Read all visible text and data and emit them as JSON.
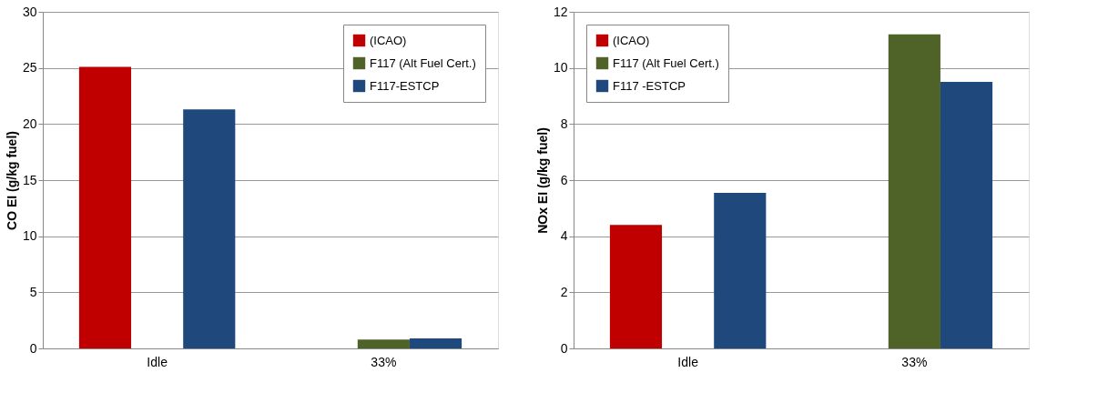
{
  "chart_data": [
    {
      "type": "bar",
      "categories": [
        "Idle",
        "33%"
      ],
      "ylabel": "CO EI (g/kg fuel)",
      "ylim": [
        0,
        30
      ],
      "yticks": [
        0,
        5,
        10,
        15,
        20,
        25,
        30
      ],
      "grid": "y",
      "legend": "top right",
      "series": [
        {
          "name": "(ICAO)",
          "color": "#c00000",
          "values": [
            25.1,
            null
          ]
        },
        {
          "name": "F117 (Alt Fuel Cert.)",
          "color": "#4f6228",
          "values": [
            null,
            0.8
          ]
        },
        {
          "name": "F117-ESTCP",
          "color": "#1f497d",
          "values": [
            21.3,
            0.9
          ]
        }
      ]
    },
    {
      "type": "bar",
      "categories": [
        "Idle",
        "33%"
      ],
      "ylabel": "NOx EI (g/kg fuel)",
      "ylim": [
        0,
        12
      ],
      "yticks": [
        0,
        2,
        4,
        6,
        8,
        10,
        12
      ],
      "grid": "y",
      "legend": "top left",
      "series": [
        {
          "name": "(ICAO)",
          "color": "#c00000",
          "values": [
            4.4,
            null
          ]
        },
        {
          "name": "F117 (Alt Fuel Cert.)",
          "color": "#4f6228",
          "values": [
            null,
            11.2
          ]
        },
        {
          "name": "F117 -ESTCP",
          "color": "#1f497d",
          "values": [
            5.55,
            9.5
          ]
        }
      ]
    }
  ]
}
